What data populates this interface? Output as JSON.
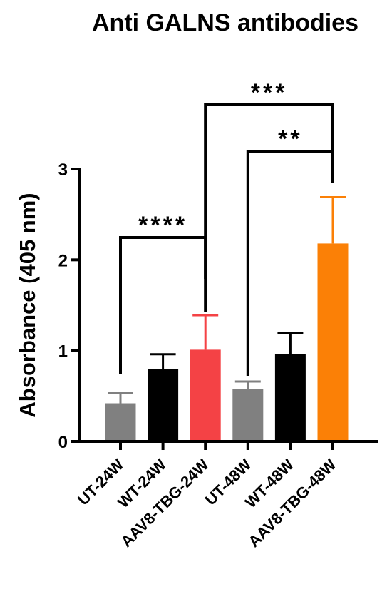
{
  "chart_data": {
    "type": "bar",
    "title": "Anti GALNS antibodies",
    "xlabel": "",
    "ylabel": "Absorbance (405 nm)",
    "ylim": [
      0,
      3
    ],
    "yticks": [
      0,
      1,
      2,
      3
    ],
    "categories": [
      "UT-24W",
      "WT-24W",
      "AAV8-TBG-24W",
      "UT-48W",
      "WT-48W",
      "AAV8-TBG-48W"
    ],
    "values": [
      0.42,
      0.8,
      1.01,
      0.58,
      0.96,
      2.18
    ],
    "errors": [
      0.11,
      0.16,
      0.38,
      0.08,
      0.23,
      0.51
    ],
    "colors": [
      "#808080",
      "#000000",
      "#f44245",
      "#808080",
      "#000000",
      "#fb8006"
    ],
    "grid": false,
    "significance": [
      {
        "from": 0,
        "to": 2,
        "label": "****"
      },
      {
        "from": 3,
        "to": 5,
        "label": "**"
      },
      {
        "from": 2,
        "to": 5,
        "label": "***"
      }
    ]
  }
}
